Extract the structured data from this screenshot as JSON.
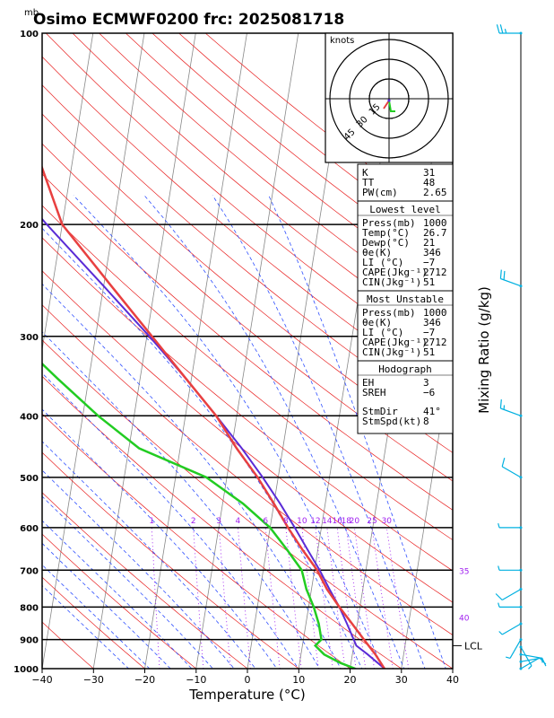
{
  "header": {
    "unit_label": "mb",
    "title": "Osimo ECMWF0200  frc: 2025081718"
  },
  "chart_data": {
    "type": "skew-t",
    "xlabel": "Temperature (°C)",
    "right_label": "Mixing Ratio (g/kg)",
    "xlim": [
      -40,
      40
    ],
    "plim": [
      1000,
      100
    ],
    "x_ticks": [
      "−40",
      "−30",
      "−20",
      "−10",
      "0",
      "10",
      "20",
      "30",
      "40"
    ],
    "p_ticks": [
      100,
      200,
      300,
      400,
      500,
      600,
      700,
      800,
      900,
      1000
    ],
    "mixing_ratio_labels": [
      {
        "text": "1",
        "w": 1
      },
      {
        "text": "2",
        "w": 2
      },
      {
        "text": "3",
        "w": 3
      },
      {
        "text": "4",
        "w": 4
      },
      {
        "text": "6",
        "w": 6
      },
      {
        "text": "8",
        "w": 8
      },
      {
        "text": "10",
        "w": 10
      },
      {
        "text": "12",
        "w": 12
      },
      {
        "text": "14",
        "w": 14
      },
      {
        "text": "16",
        "w": 16
      },
      {
        "text": "18",
        "w": 18
      },
      {
        "text": "20",
        "w": 20
      },
      {
        "text": "25",
        "w": 25
      },
      {
        "text": "30",
        "w": 30
      }
    ],
    "theta_e_labels": [
      "35",
      "40"
    ],
    "lcl_label": "LCL",
    "lcl_pressure": 920,
    "temperature": {
      "p": [
        1000,
        950,
        900,
        850,
        800,
        750,
        700,
        650,
        600,
        550,
        500,
        450,
        400,
        350,
        300,
        250,
        200,
        150,
        100
      ],
      "t": [
        26.7,
        24.5,
        21.8,
        19.0,
        16.0,
        13.0,
        10.5,
        7.0,
        3.5,
        0.0,
        -4.0,
        -9.0,
        -14.0,
        -21.0,
        -29.0,
        -38.5,
        -50.0,
        -58.0,
        -66.0
      ]
    },
    "dewpoint": {
      "p": [
        1000,
        980,
        950,
        920,
        900,
        850,
        800,
        750,
        700,
        650,
        600,
        550,
        500,
        450,
        400,
        350,
        300,
        250,
        200,
        150,
        100
      ],
      "td": [
        21.0,
        18.0,
        14.5,
        12.5,
        13.5,
        12.5,
        11.0,
        9.0,
        7.5,
        4.0,
        0.0,
        -6.0,
        -14.0,
        -28.0,
        -37.0,
        -46.0,
        -56.0,
        -64.0,
        -72.0,
        -81.0,
        -93.0
      ]
    },
    "parcel": {
      "p": [
        1000,
        950,
        920,
        900,
        850,
        800,
        750,
        700,
        650,
        600,
        550,
        500,
        450,
        400,
        350,
        300,
        250,
        200,
        150,
        100
      ],
      "t": [
        26.7,
        23.0,
        20.5,
        19.8,
        18.0,
        16.0,
        13.5,
        11.0,
        8.0,
        4.8,
        1.2,
        -3.0,
        -8.0,
        -14.0,
        -21.0,
        -29.5,
        -40.0,
        -53.0,
        -69.0,
        -91.0
      ]
    },
    "hodograph": {
      "title": "knots",
      "ring_labels": [
        "15",
        "30",
        "45"
      ]
    },
    "wind_barbs": [
      {
        "p": 1000,
        "dir": 60,
        "spd": 10
      },
      {
        "p": 975,
        "dir": 80,
        "spd": 10
      },
      {
        "p": 950,
        "dir": 100,
        "spd": 8
      },
      {
        "p": 925,
        "dir": 150,
        "spd": 6
      },
      {
        "p": 900,
        "dir": 210,
        "spd": 6
      },
      {
        "p": 850,
        "dir": 240,
        "spd": 5
      },
      {
        "p": 800,
        "dir": 270,
        "spd": 5
      },
      {
        "p": 750,
        "dir": 240,
        "spd": 10
      },
      {
        "p": 700,
        "dir": 270,
        "spd": 5
      },
      {
        "p": 600,
        "dir": 270,
        "spd": 5
      },
      {
        "p": 500,
        "dir": 300,
        "spd": 10
      },
      {
        "p": 400,
        "dir": 290,
        "spd": 15
      },
      {
        "p": 250,
        "dir": 290,
        "spd": 20
      },
      {
        "p": 100,
        "dir": 270,
        "spd": 25
      }
    ]
  },
  "indices": {
    "top": [
      {
        "label": "K",
        "value": "31"
      },
      {
        "label": "TT",
        "value": "48"
      },
      {
        "label": "PW(cm)",
        "value": "2.65"
      }
    ],
    "lowest_level": {
      "header": "Lowest level",
      "rows": [
        {
          "label": "Press(mb)",
          "value": "1000"
        },
        {
          "label": "Temp(°C)",
          "value": "26.7"
        },
        {
          "label": "Dewp(°C)",
          "value": "21"
        },
        {
          "label": "θe(K)",
          "value": "346"
        },
        {
          "label": "LI (°C)",
          "value": "−7"
        },
        {
          "label": "CAPE(Jkg⁻¹)",
          "value": "2712"
        },
        {
          "label": "CIN(Jkg⁻¹)",
          "value": "51"
        }
      ]
    },
    "most_unstable": {
      "header": "Most Unstable",
      "rows": [
        {
          "label": "Press(mb)",
          "value": "1000"
        },
        {
          "label": "θe(K)",
          "value": "346"
        },
        {
          "label": "LI (°C)",
          "value": "−7"
        },
        {
          "label": "CAPE(Jkg⁻¹)",
          "value": "2712"
        },
        {
          "label": "CIN(Jkg⁻¹)",
          "value": "51"
        }
      ]
    },
    "hodograph_params": {
      "header": "Hodograph",
      "rows": [
        {
          "label": "EH",
          "value": "3"
        },
        {
          "label": "SREH",
          "value": "−6"
        },
        {
          "label": "StmDir",
          "value": "41°"
        },
        {
          "label": "StmSpd(kt)",
          "value": "8"
        }
      ]
    }
  },
  "colors": {
    "temperature": "#e84040",
    "dewpoint": "#22cc22",
    "parcel": "#5a2bd6",
    "isotherm": "#888888",
    "dry_adiabat": "#e82020",
    "moist_adiabat": "#3050ff",
    "mixing_ratio": "#a020f0",
    "wind": "#00b0e0"
  }
}
